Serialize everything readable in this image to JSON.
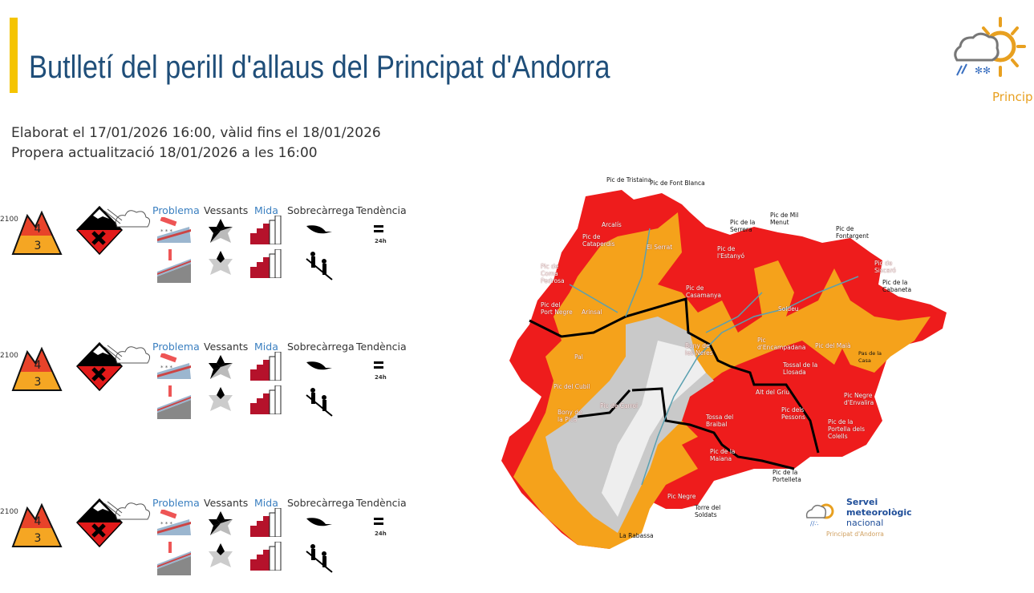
{
  "header": {
    "title": "Butlletí del perill d'allaus del Principat d'Andorra",
    "issued": "Elaborat el 17/01/2026 16:00, vàlid fins el 18/01/2026",
    "next_update": "Propera actualització 18/01/2026 a les 16:00",
    "logo_text": "Princip"
  },
  "columns": {
    "problema": "Problema",
    "vessants": "Vessants",
    "mida": "Mida",
    "sobrecarrega": "Sobrecàrrega",
    "tendencia": "Tendència"
  },
  "zones": [
    {
      "altitude": "2100",
      "danger_upper": "4",
      "danger_lower": "3",
      "trend": "24h"
    },
    {
      "altitude": "2100",
      "danger_upper": "4",
      "danger_lower": "3",
      "trend": "24h"
    },
    {
      "altitude": "2100",
      "danger_upper": "4",
      "danger_lower": "3",
      "trend": "24h"
    }
  ],
  "colors": {
    "danger4": "#e8432a",
    "danger3": "#f5a623",
    "map_red": "#ee1c1c",
    "map_orange": "#f5a21b",
    "title": "#1f4e79"
  },
  "map": {
    "labels": [
      "Pic de Tristaina",
      "Pic de Font Blanca",
      "Arcalís",
      "Pic de Cataperdís",
      "El Serrat",
      "Pic de la Serrera",
      "Pic de Mil Menut",
      "Pic de Fontargent",
      "Pic de l'Estanyó",
      "Pic de Siscaró",
      "Pic de Coma Pedrosa",
      "Pic de la Cabaneta",
      "Pic de Casamanya",
      "Pic del Port Negre",
      "Arinsal",
      "Soldeu",
      "Bony de les Neres",
      "Pic d'Encampadana",
      "Pic del Maià",
      "Pas de la Casa",
      "Pal",
      "Tossal de la Llosada",
      "Pic del Cubil",
      "Alt del Griu",
      "Pic Negre d'Envalira",
      "Pic de Carroi",
      "Bony de la Pica",
      "Pic dels Pessons",
      "Tossa del Braibal",
      "Pic de la Portella dels Colells",
      "Pic de la Maiana",
      "Pic de la Portelleta",
      "Pic Negre",
      "Torre del Soldats",
      "La Rabassa"
    ],
    "logo": {
      "line1": "Servei",
      "line2": "meteorològic",
      "line3": "nacional",
      "sub": "Principat d'Andorra"
    }
  }
}
